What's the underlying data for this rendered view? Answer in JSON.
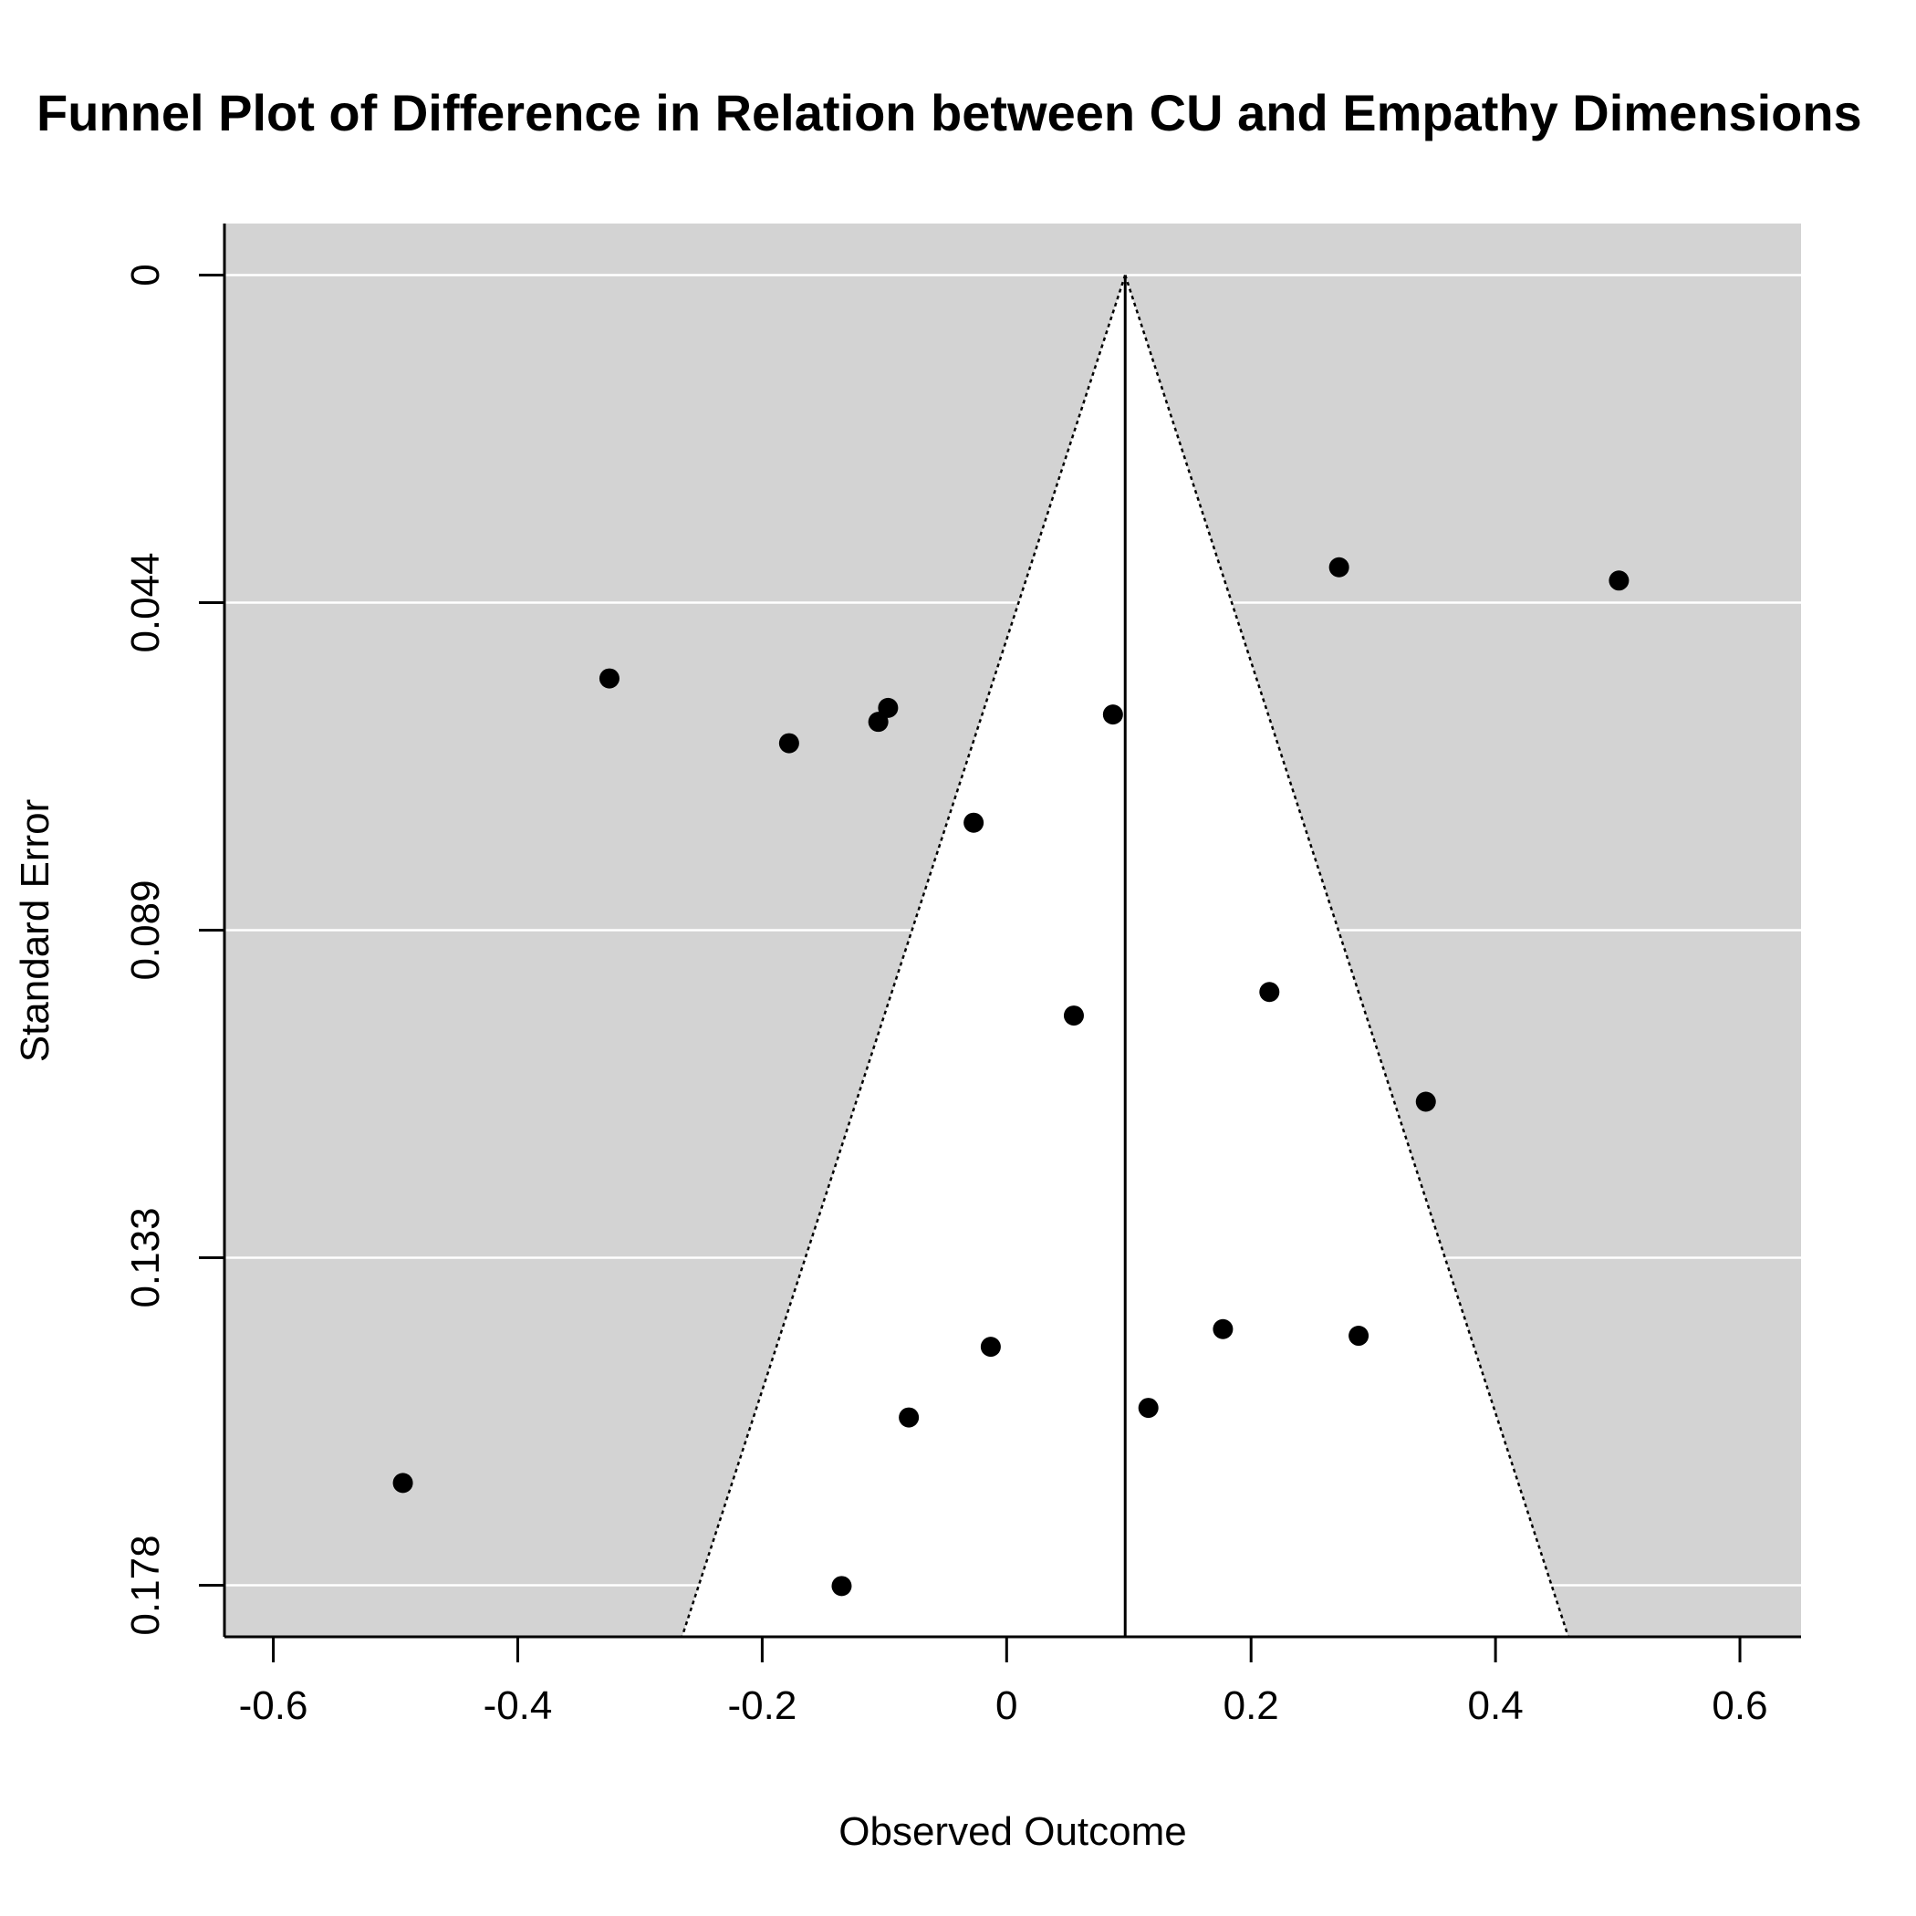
{
  "chart_data": {
    "type": "scatter",
    "title": "Funnel Plot of Difference in Relation between CU and Empathy Dimensions",
    "xlabel": "Observed Outcome",
    "ylabel": "Standard Error",
    "xlim": [
      -0.64,
      0.65
    ],
    "ylim": [
      0.185,
      -0.007
    ],
    "y_reversed": true,
    "x_ticks": [
      -0.6,
      -0.4,
      -0.2,
      0,
      0.2,
      0.4,
      0.6
    ],
    "x_tick_labels": [
      "-0.6",
      "-0.4",
      "-0.2",
      "0",
      "0.2",
      "0.4",
      "0.6"
    ],
    "y_ticks": [
      0,
      0.0445,
      0.089,
      0.1335,
      0.178
    ],
    "y_tick_labels": [
      "0",
      "0.044",
      "0.089",
      "0.133",
      "0.178"
    ],
    "grid": "horizontal",
    "background": "#d3d3d3",
    "funnel_fill": "#ffffff",
    "pooled_estimate": 0.097,
    "funnel_se_max": 0.185,
    "points": [
      {
        "x": 0.272,
        "y": 0.0397
      },
      {
        "x": 0.501,
        "y": 0.0415
      },
      {
        "x": -0.325,
        "y": 0.0548
      },
      {
        "x": -0.097,
        "y": 0.0588
      },
      {
        "x": -0.105,
        "y": 0.0607
      },
      {
        "x": -0.178,
        "y": 0.0636
      },
      {
        "x": 0.087,
        "y": 0.0597
      },
      {
        "x": -0.027,
        "y": 0.0744
      },
      {
        "x": 0.215,
        "y": 0.0974
      },
      {
        "x": 0.055,
        "y": 0.1006
      },
      {
        "x": 0.343,
        "y": 0.1123
      },
      {
        "x": 0.177,
        "y": 0.1432
      },
      {
        "x": 0.288,
        "y": 0.1441
      },
      {
        "x": -0.013,
        "y": 0.1456
      },
      {
        "x": 0.116,
        "y": 0.1539
      },
      {
        "x": -0.08,
        "y": 0.1552
      },
      {
        "x": -0.494,
        "y": 0.1641
      },
      {
        "x": -0.135,
        "y": 0.1781
      }
    ]
  }
}
